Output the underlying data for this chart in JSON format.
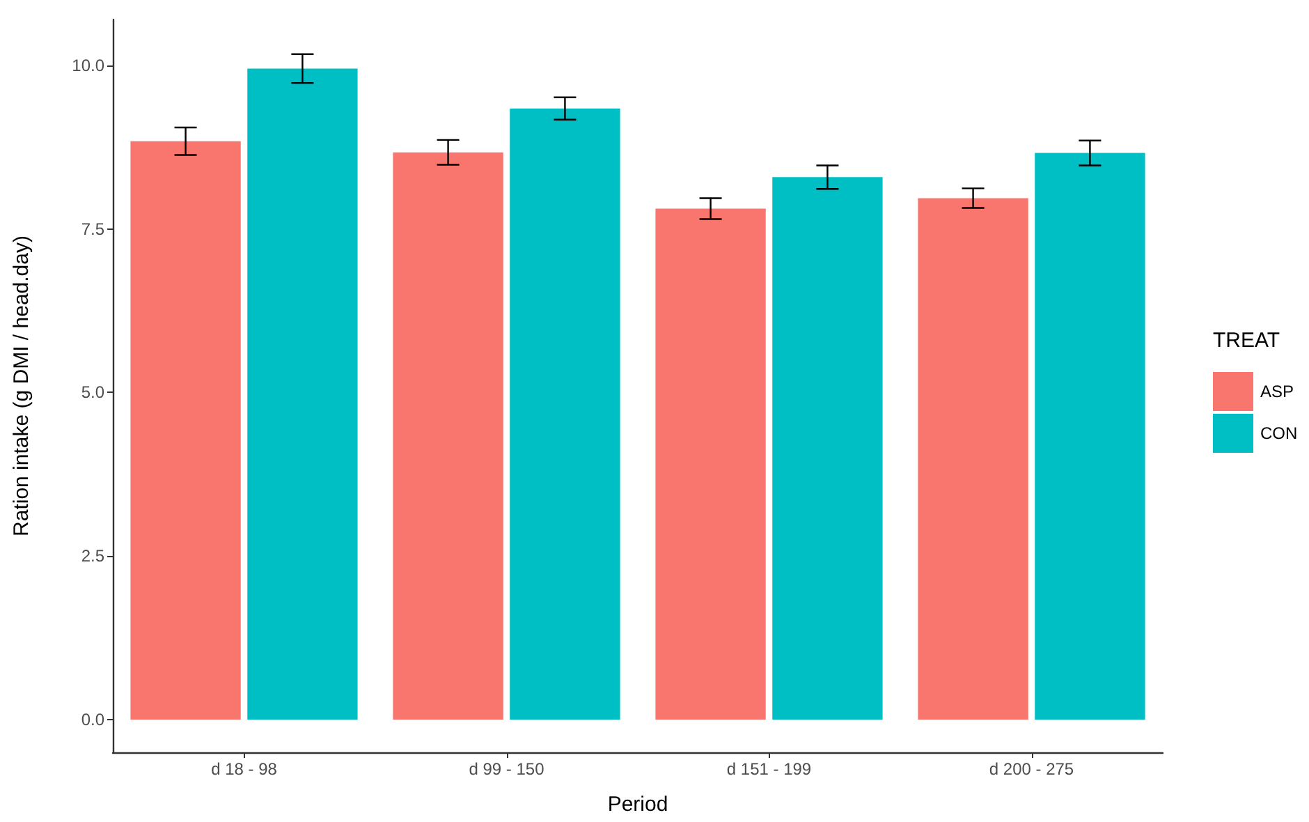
{
  "chart_data": {
    "type": "bar",
    "xlabel": "Period",
    "ylabel": "Ration intake (g DMI / head.day)",
    "legend_title": "TREAT",
    "categories": [
      "d 18 - 98",
      "d 99 - 150",
      "d 151 - 199",
      "d 200 - 275"
    ],
    "series": [
      {
        "name": "ASP",
        "color": "#f8766d",
        "values": [
          8.84,
          8.67,
          7.81,
          7.97
        ],
        "errors": [
          0.21,
          0.19,
          0.16,
          0.15
        ]
      },
      {
        "name": "CON",
        "color": "#00bfc4",
        "values": [
          9.95,
          9.34,
          8.29,
          8.66
        ],
        "errors": [
          0.22,
          0.17,
          0.18,
          0.19
        ]
      }
    ],
    "ylim": [
      -0.5,
      10.7
    ],
    "yticks": [
      {
        "value": 0,
        "label": "0.0"
      },
      2.5,
      {
        "value": 5,
        "label": "5.0"
      },
      7.5,
      {
        "value": 10,
        "label": "10.0"
      }
    ],
    "legend": "right"
  }
}
